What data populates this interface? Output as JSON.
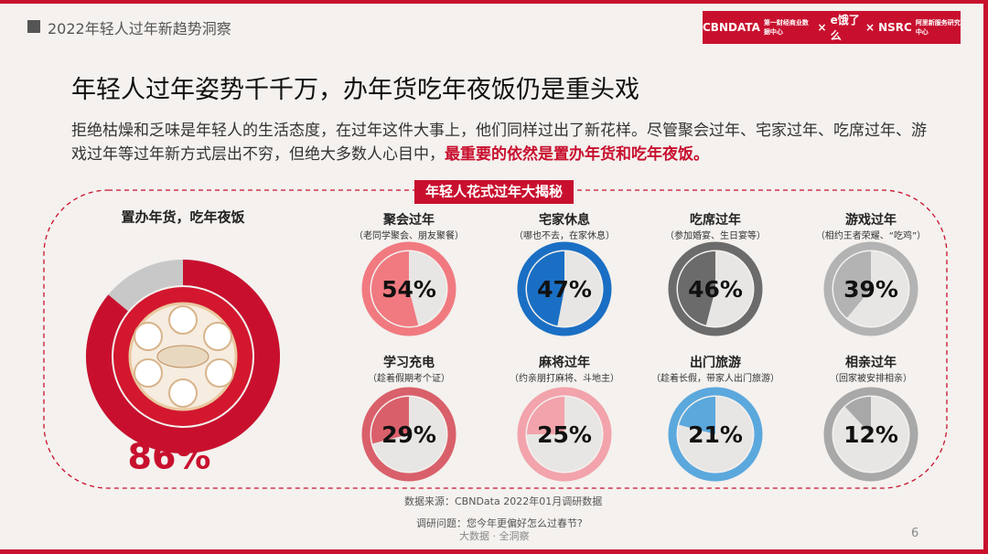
{
  "header": "2022年轻人过年新趋势洞察",
  "logos": [
    "CBNDATA",
    "第一财经商业数据中心",
    "×",
    "e饿了么",
    "×",
    "NSRC",
    "阿里新服务研究中心"
  ],
  "title": "年轻人过年姿势千千万，办年货吃年夜饭仍是重头戏",
  "body": {
    "text": "拒绝枯燥和乏味是年轻人的生活态度，在过年这件大事上，他们同样过出了新花样。尽管聚会过年、宅家过年、吃席过年、游戏过年等过年新方式层出不穷，但绝大多数人心目中，",
    "highlight": "最重要的依然是置办年货和吃年夜饭。"
  },
  "panel": {
    "tag": "年轻人花式过年大揭秘",
    "main": {
      "label": "置办年货，吃年夜饭",
      "value": 86,
      "value_label": "86%",
      "color": "#c8102e"
    },
    "items": [
      {
        "label": "聚会过年",
        "sub": "（老同学聚会、朋友聚餐）",
        "value": 54,
        "value_label": "54%",
        "color": "#f07a80"
      },
      {
        "label": "宅家休息",
        "sub": "（哪也不去，在家休息）",
        "value": 47,
        "value_label": "47%",
        "color": "#1a6fc4"
      },
      {
        "label": "吃席过年",
        "sub": "（参加婚宴、生日宴等）",
        "value": 46,
        "value_label": "46%",
        "color": "#6b6b6b"
      },
      {
        "label": "游戏过年",
        "sub": "（相约王者荣耀、“吃鸡”）",
        "value": 39,
        "value_label": "39%",
        "color": "#b3b3b3"
      },
      {
        "label": "学习充电",
        "sub": "（趁着假期考个证）",
        "value": 29,
        "value_label": "29%",
        "color": "#d9606a"
      },
      {
        "label": "麻将过年",
        "sub": "（约亲朋打麻将、斗地主）",
        "value": 25,
        "value_label": "25%",
        "color": "#f2a3ab"
      },
      {
        "label": "出门旅游",
        "sub": "（趁着长假，带家人出门旅游）",
        "value": 21,
        "value_label": "21%",
        "color": "#5ba8dd"
      },
      {
        "label": "相亲过年",
        "sub": "（回家被安排相亲）",
        "value": 12,
        "value_label": "12%",
        "color": "#a8a8a8"
      }
    ]
  },
  "source": "数据来源：CBNData 2022年01月调研数据",
  "question": "调研问题：您今年更偏好怎么过春节?",
  "footer": "大数据 · 全洞察",
  "page": "6"
}
